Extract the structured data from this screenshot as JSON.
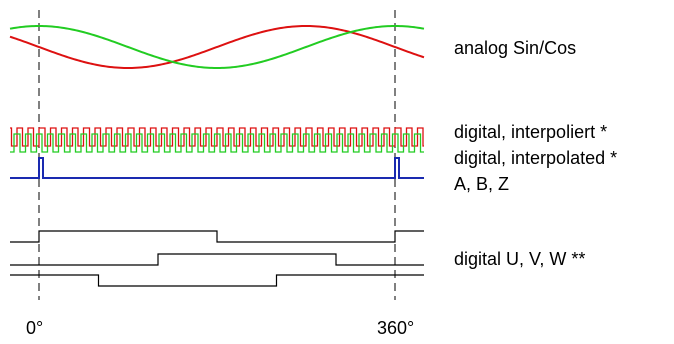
{
  "labels": {
    "analog": "analog Sin/Cos",
    "interp_de": "digital, interpoliert *",
    "interp_en": "digital, interpolated *",
    "abz": "A, B, Z",
    "uvw": "digital U, V, W **",
    "angle_start": "0°",
    "angle_end": "360°"
  },
  "colors": {
    "sin": "#dd1111",
    "cos": "#22cc22",
    "index": "#1a2ab0",
    "uvw": "#000000",
    "marker": "#000000"
  },
  "signals": {
    "period_deg": 360,
    "interpolation_cycles_per_period": 32,
    "uvw_phase_shift_deg": [
      0,
      120,
      240
    ]
  }
}
